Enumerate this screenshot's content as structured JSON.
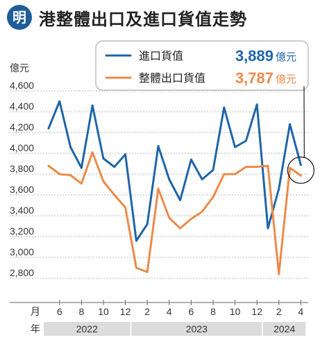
{
  "header": {
    "logo_text": "明",
    "title": "港整體出口及進口貨值走勢"
  },
  "colors": {
    "import": "#1f65a8",
    "export": "#ec8a4a",
    "logo": "#1f5c9a",
    "grid": "#b9b9b9",
    "year_band": "#dcdcdc"
  },
  "chart_data": {
    "type": "line",
    "ylabel": "億元",
    "xlabel_prefix_month": "月",
    "xlabel_prefix_year": "年",
    "ylim": [
      2800,
      4600
    ],
    "yticks": [
      "4,600",
      "4,400",
      "4,200",
      "4,000",
      "3,800",
      "3,600",
      "3,400",
      "3,200",
      "3,000",
      "2,800"
    ],
    "ytick_values": [
      4600,
      4400,
      4200,
      4000,
      3800,
      3600,
      3400,
      3200,
      3000,
      2800
    ],
    "x": [
      "2022-05",
      "2022-06",
      "2022-07",
      "2022-08",
      "2022-09",
      "2022-10",
      "2022-11",
      "2022-12",
      "2023-01",
      "2023-02",
      "2023-03",
      "2023-04",
      "2023-05",
      "2023-06",
      "2023-07",
      "2023-08",
      "2023-09",
      "2023-10",
      "2023-11",
      "2023-12",
      "2024-01",
      "2024-02",
      "2024-03",
      "2024-04"
    ],
    "xtick_labels": [
      {
        "x": "2022-06",
        "label": "6"
      },
      {
        "x": "2022-08",
        "label": "8"
      },
      {
        "x": "2022-10",
        "label": "10"
      },
      {
        "x": "2022-12",
        "label": "12"
      },
      {
        "x": "2023-02",
        "label": "2"
      },
      {
        "x": "2023-04",
        "label": "4"
      },
      {
        "x": "2023-06",
        "label": "6"
      },
      {
        "x": "2023-08",
        "label": "8"
      },
      {
        "x": "2023-10",
        "label": "10"
      },
      {
        "x": "2023-12",
        "label": "12"
      },
      {
        "x": "2024-02",
        "label": "2"
      },
      {
        "x": "2024-04",
        "label": "4"
      }
    ],
    "years": [
      {
        "label": "2022",
        "from": "2022-05",
        "to": "2022-12"
      },
      {
        "label": "2023",
        "from": "2023-01",
        "to": "2023-12"
      },
      {
        "label": "2024",
        "from": "2024-01",
        "to": "2024-04"
      }
    ],
    "series": [
      {
        "name": "進口貨值",
        "key": "import",
        "latest_label": "3,889",
        "unit": "億元",
        "values": [
          4240,
          4500,
          4060,
          3860,
          4460,
          3950,
          3870,
          3990,
          3160,
          3320,
          4070,
          3750,
          3550,
          3940,
          3750,
          3840,
          4440,
          4060,
          4120,
          4470,
          3280,
          3660,
          4280,
          3889
        ]
      },
      {
        "name": "整體出口貨值",
        "key": "export",
        "latest_label": "3,787",
        "unit": "億元",
        "values": [
          3880,
          3800,
          3790,
          3710,
          4010,
          3730,
          3600,
          3480,
          2900,
          2860,
          3660,
          3380,
          3280,
          3370,
          3440,
          3580,
          3800,
          3800,
          3870,
          3870,
          3880,
          2840,
          3860,
          3787
        ]
      }
    ],
    "grid": "horizontal",
    "legend_position": "top-right"
  }
}
